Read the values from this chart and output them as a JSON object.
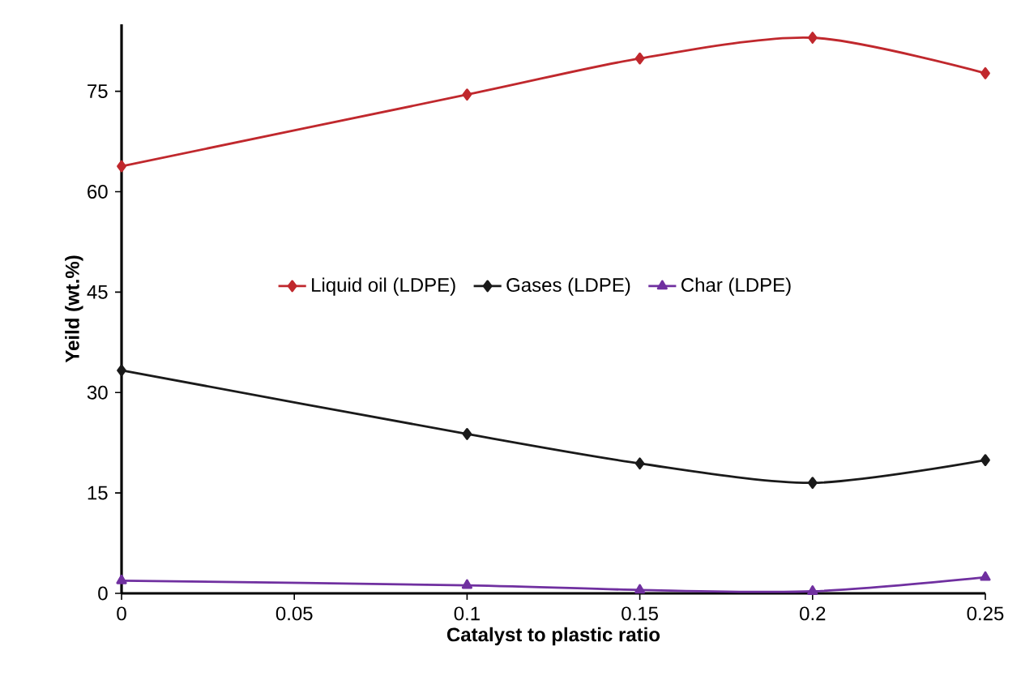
{
  "chart_data": {
    "type": "line",
    "xlabel": "Catalyst to plastic ratio",
    "ylabel": "Yeild (wt.%)",
    "x": [
      0,
      0.1,
      0.15,
      0.2,
      0.25
    ],
    "series": [
      {
        "name": "Liquid oil (LDPE)",
        "color": "#c0282d",
        "marker": "diamond",
        "values": [
          63.8,
          74.5,
          79.9,
          83,
          77.7
        ]
      },
      {
        "name": "Gases (LDPE)",
        "color": "#1a1a1a",
        "marker": "diamond",
        "values": [
          33.3,
          23.8,
          19.4,
          16.5,
          19.9
        ]
      },
      {
        "name": "Char (LDPE)",
        "color": "#7030a0",
        "marker": "triangle",
        "values": [
          1.9,
          1.2,
          0.5,
          0.3,
          2.4
        ]
      }
    ],
    "xlim": [
      0,
      0.25
    ],
    "xticks": [
      0,
      0.05,
      0.1,
      0.15,
      0.2,
      0.25
    ],
    "ylim": [
      0,
      85
    ],
    "yticks": [
      0,
      15,
      30,
      45,
      60,
      75
    ],
    "legend": "center",
    "grid": false,
    "line_style": "solid"
  }
}
